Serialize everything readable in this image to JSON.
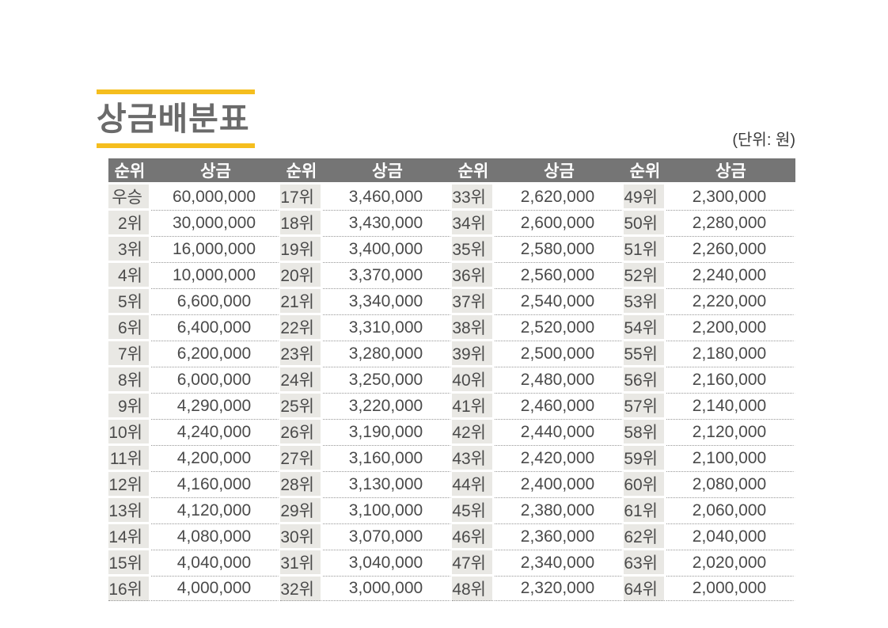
{
  "title": "상금배분표",
  "unit_note": "(단위: 원)",
  "colors": {
    "accent": "#F5BE1E",
    "header_bg": "#757575",
    "rank_cell_bg": "#E9E8E4",
    "body_text": "#4A4A4A",
    "title_text": "#6A6A6A"
  },
  "table": {
    "column_headers": [
      "순위",
      "상금",
      "순위",
      "상금",
      "순위",
      "상금",
      "순위",
      "상금"
    ],
    "rows": [
      [
        "우승",
        "60,000,000",
        "17위",
        "3,460,000",
        "33위",
        "2,620,000",
        "49위",
        "2,300,000"
      ],
      [
        "2위",
        "30,000,000",
        "18위",
        "3,430,000",
        "34위",
        "2,600,000",
        "50위",
        "2,280,000"
      ],
      [
        "3위",
        "16,000,000",
        "19위",
        "3,400,000",
        "35위",
        "2,580,000",
        "51위",
        "2,260,000"
      ],
      [
        "4위",
        "10,000,000",
        "20위",
        "3,370,000",
        "36위",
        "2,560,000",
        "52위",
        "2,240,000"
      ],
      [
        "5위",
        "6,600,000",
        "21위",
        "3,340,000",
        "37위",
        "2,540,000",
        "53위",
        "2,220,000"
      ],
      [
        "6위",
        "6,400,000",
        "22위",
        "3,310,000",
        "38위",
        "2,520,000",
        "54위",
        "2,200,000"
      ],
      [
        "7위",
        "6,200,000",
        "23위",
        "3,280,000",
        "39위",
        "2,500,000",
        "55위",
        "2,180,000"
      ],
      [
        "8위",
        "6,000,000",
        "24위",
        "3,250,000",
        "40위",
        "2,480,000",
        "56위",
        "2,160,000"
      ],
      [
        "9위",
        "4,290,000",
        "25위",
        "3,220,000",
        "41위",
        "2,460,000",
        "57위",
        "2,140,000"
      ],
      [
        "10위",
        "4,240,000",
        "26위",
        "3,190,000",
        "42위",
        "2,440,000",
        "58위",
        "2,120,000"
      ],
      [
        "11위",
        "4,200,000",
        "27위",
        "3,160,000",
        "43위",
        "2,420,000",
        "59위",
        "2,100,000"
      ],
      [
        "12위",
        "4,160,000",
        "28위",
        "3,130,000",
        "44위",
        "2,400,000",
        "60위",
        "2,080,000"
      ],
      [
        "13위",
        "4,120,000",
        "29위",
        "3,100,000",
        "45위",
        "2,380,000",
        "61위",
        "2,060,000"
      ],
      [
        "14위",
        "4,080,000",
        "30위",
        "3,070,000",
        "46위",
        "2,360,000",
        "62위",
        "2,040,000"
      ],
      [
        "15위",
        "4,040,000",
        "31위",
        "3,040,000",
        "47위",
        "2,340,000",
        "63위",
        "2,020,000"
      ],
      [
        "16위",
        "4,000,000",
        "32위",
        "3,000,000",
        "48위",
        "2,320,000",
        "64위",
        "2,000,000"
      ]
    ]
  }
}
